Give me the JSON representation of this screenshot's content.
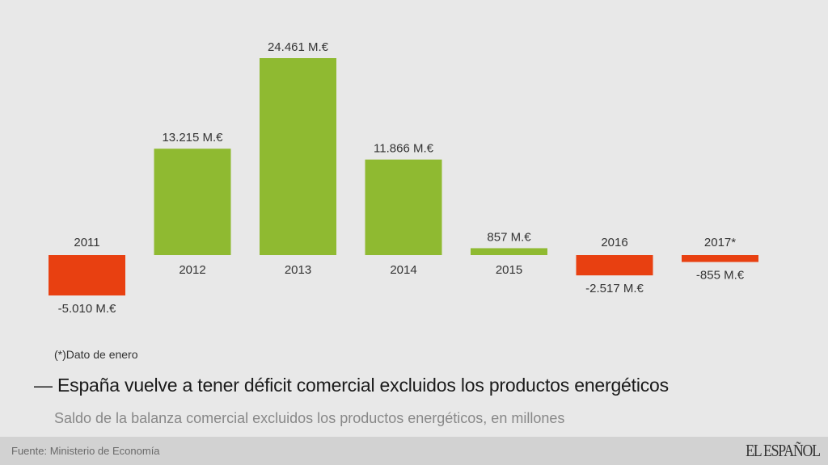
{
  "chart_data": {
    "type": "bar",
    "categories": [
      "2011",
      "2012",
      "2013",
      "2014",
      "2015",
      "2016",
      "2017*"
    ],
    "values": [
      -5010,
      13215,
      24461,
      11866,
      857,
      -2517,
      -855
    ],
    "value_labels": [
      "-5.010 M.€",
      "13.215 M.€",
      "24.461 M.€",
      "11.866 M.€",
      "857 M.€",
      "-2.517 M.€",
      "-855 M.€"
    ],
    "title": "España vuelve a tener déficit comercial excluidos los productos energéticos",
    "subtitle": "Saldo de la balanza comercial excluidos los productos energéticos, en millones",
    "xlabel": "",
    "ylabel": "",
    "unit": "M.€",
    "grid": false,
    "colors": {
      "positive": "#8fba31",
      "negative": "#e84011"
    }
  },
  "note": "(*)Dato de enero",
  "title_prefix": "—",
  "footer": {
    "source": "Fuente: Ministerio de Economía",
    "logo": "EL ESPAÑOL"
  }
}
